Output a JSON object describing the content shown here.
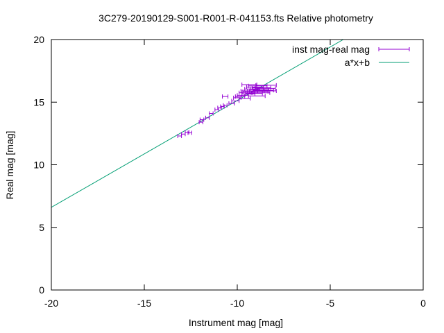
{
  "chart_data": {
    "type": "scatter",
    "title": "3C279-20190129-S001-R001-R-041153.fts Relative photometry",
    "xlabel": "Instrument mag [mag]",
    "ylabel": "Real mag [mag]",
    "xlim": [
      -20,
      0
    ],
    "ylim": [
      0,
      20
    ],
    "xticks": [
      -20,
      -15,
      -10,
      -5,
      0
    ],
    "yticks": [
      0,
      5,
      10,
      15,
      20
    ],
    "xtick_labels": [
      "-20",
      "-15",
      "-10",
      "-5",
      "0"
    ],
    "ytick_labels": [
      "0",
      "5",
      "10",
      "15",
      "20"
    ],
    "grid": false,
    "legend_position": "top-right",
    "series": [
      {
        "name": "inst mag-real mag",
        "kind": "points-with-x-errorbars",
        "color": "#9400d3",
        "points": [
          {
            "x": -13.1,
            "y": 12.3,
            "xerr": 0.1
          },
          {
            "x": -12.9,
            "y": 12.45,
            "xerr": 0.1
          },
          {
            "x": -12.7,
            "y": 12.6,
            "xerr": 0.1
          },
          {
            "x": -12.55,
            "y": 12.55,
            "xerr": 0.1
          },
          {
            "x": -11.95,
            "y": 13.4,
            "xerr": 0.1
          },
          {
            "x": -11.9,
            "y": 13.6,
            "xerr": 0.1
          },
          {
            "x": -11.6,
            "y": 13.75,
            "xerr": 0.1
          },
          {
            "x": -11.4,
            "y": 14.1,
            "xerr": 0.1
          },
          {
            "x": -11.1,
            "y": 14.4,
            "xerr": 0.1
          },
          {
            "x": -10.95,
            "y": 14.55,
            "xerr": 0.1
          },
          {
            "x": -10.8,
            "y": 14.65,
            "xerr": 0.1
          },
          {
            "x": -10.65,
            "y": 14.75,
            "xerr": 0.1
          },
          {
            "x": -10.65,
            "y": 15.45,
            "xerr": 0.15
          },
          {
            "x": -10.3,
            "y": 14.9,
            "xerr": 0.15
          },
          {
            "x": -10.1,
            "y": 15.1,
            "xerr": 0.2
          },
          {
            "x": -10.0,
            "y": 15.35,
            "xerr": 0.2
          },
          {
            "x": -9.85,
            "y": 15.45,
            "xerr": 0.25
          },
          {
            "x": -9.7,
            "y": 15.55,
            "xerr": 0.3
          },
          {
            "x": -9.6,
            "y": 15.3,
            "xerr": 0.3
          },
          {
            "x": -9.55,
            "y": 15.75,
            "xerr": 0.35
          },
          {
            "x": -9.45,
            "y": 15.9,
            "xerr": 0.35
          },
          {
            "x": -9.4,
            "y": 15.65,
            "xerr": 0.35
          },
          {
            "x": -9.35,
            "y": 16.4,
            "xerr": 0.4
          },
          {
            "x": -9.3,
            "y": 15.85,
            "xerr": 0.4
          },
          {
            "x": -9.2,
            "y": 16.05,
            "xerr": 0.4
          },
          {
            "x": -9.1,
            "y": 15.7,
            "xerr": 0.45
          },
          {
            "x": -9.05,
            "y": 16.2,
            "xerr": 0.45
          },
          {
            "x": -9.0,
            "y": 15.9,
            "xerr": 0.45
          },
          {
            "x": -8.95,
            "y": 15.5,
            "xerr": 0.45
          },
          {
            "x": -8.9,
            "y": 16.3,
            "xerr": 0.5
          },
          {
            "x": -8.85,
            "y": 15.85,
            "xerr": 0.5
          },
          {
            "x": -8.8,
            "y": 16.0,
            "xerr": 0.5
          },
          {
            "x": -8.75,
            "y": 15.75,
            "xerr": 0.5
          },
          {
            "x": -8.7,
            "y": 16.15,
            "xerr": 0.5
          },
          {
            "x": -8.6,
            "y": 15.95,
            "xerr": 0.55
          },
          {
            "x": -8.5,
            "y": 16.1,
            "xerr": 0.55
          },
          {
            "x": -8.45,
            "y": 16.35,
            "xerr": 0.55
          },
          {
            "x": -8.4,
            "y": 15.9,
            "xerr": 0.5
          }
        ]
      },
      {
        "name": "a*x+b",
        "kind": "line",
        "color": "#009e73",
        "x": [
          -20,
          -4.3
        ],
        "y": [
          6.6,
          20.0
        ]
      }
    ]
  }
}
